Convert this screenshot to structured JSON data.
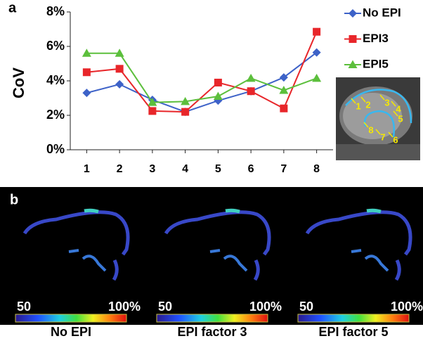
{
  "panels": {
    "a": "a",
    "b": "b"
  },
  "chart_data": {
    "type": "line",
    "ylabel": "CoV",
    "categories": [
      "1",
      "2",
      "3",
      "4",
      "5",
      "6",
      "7",
      "8"
    ],
    "series": [
      {
        "name": "No EPI",
        "color": "#3d62c8",
        "marker": "diamond",
        "values": [
          3.3,
          3.8,
          2.9,
          2.2,
          2.85,
          3.4,
          4.2,
          5.65
        ]
      },
      {
        "name": "EPI3",
        "color": "#e8262a",
        "marker": "square",
        "values": [
          4.5,
          4.7,
          2.25,
          2.2,
          3.9,
          3.4,
          2.4,
          6.85
        ]
      },
      {
        "name": "EPI5",
        "color": "#5cbf3c",
        "marker": "triangle",
        "values": [
          5.6,
          5.6,
          2.75,
          2.8,
          3.1,
          4.15,
          3.45,
          4.15
        ]
      }
    ],
    "ylim": [
      0,
      8
    ],
    "yticks": [
      {
        "value": 0,
        "label": "0%"
      },
      {
        "value": 2,
        "label": "2%"
      },
      {
        "value": 4,
        "label": "4%"
      },
      {
        "value": 6,
        "label": "6%"
      },
      {
        "value": 8,
        "label": "8%"
      }
    ],
    "grid": false,
    "legend": "right"
  },
  "inset_labels": [
    "1",
    "2",
    "3",
    "4",
    "5",
    "6",
    "7",
    "8"
  ],
  "maps": [
    {
      "scale_min": "50",
      "scale_max": "100%",
      "caption": "No EPI"
    },
    {
      "scale_min": "50",
      "scale_max": "100%",
      "caption": "EPI factor 3"
    },
    {
      "scale_min": "50",
      "scale_max": "100%",
      "caption": "EPI factor 5"
    }
  ]
}
